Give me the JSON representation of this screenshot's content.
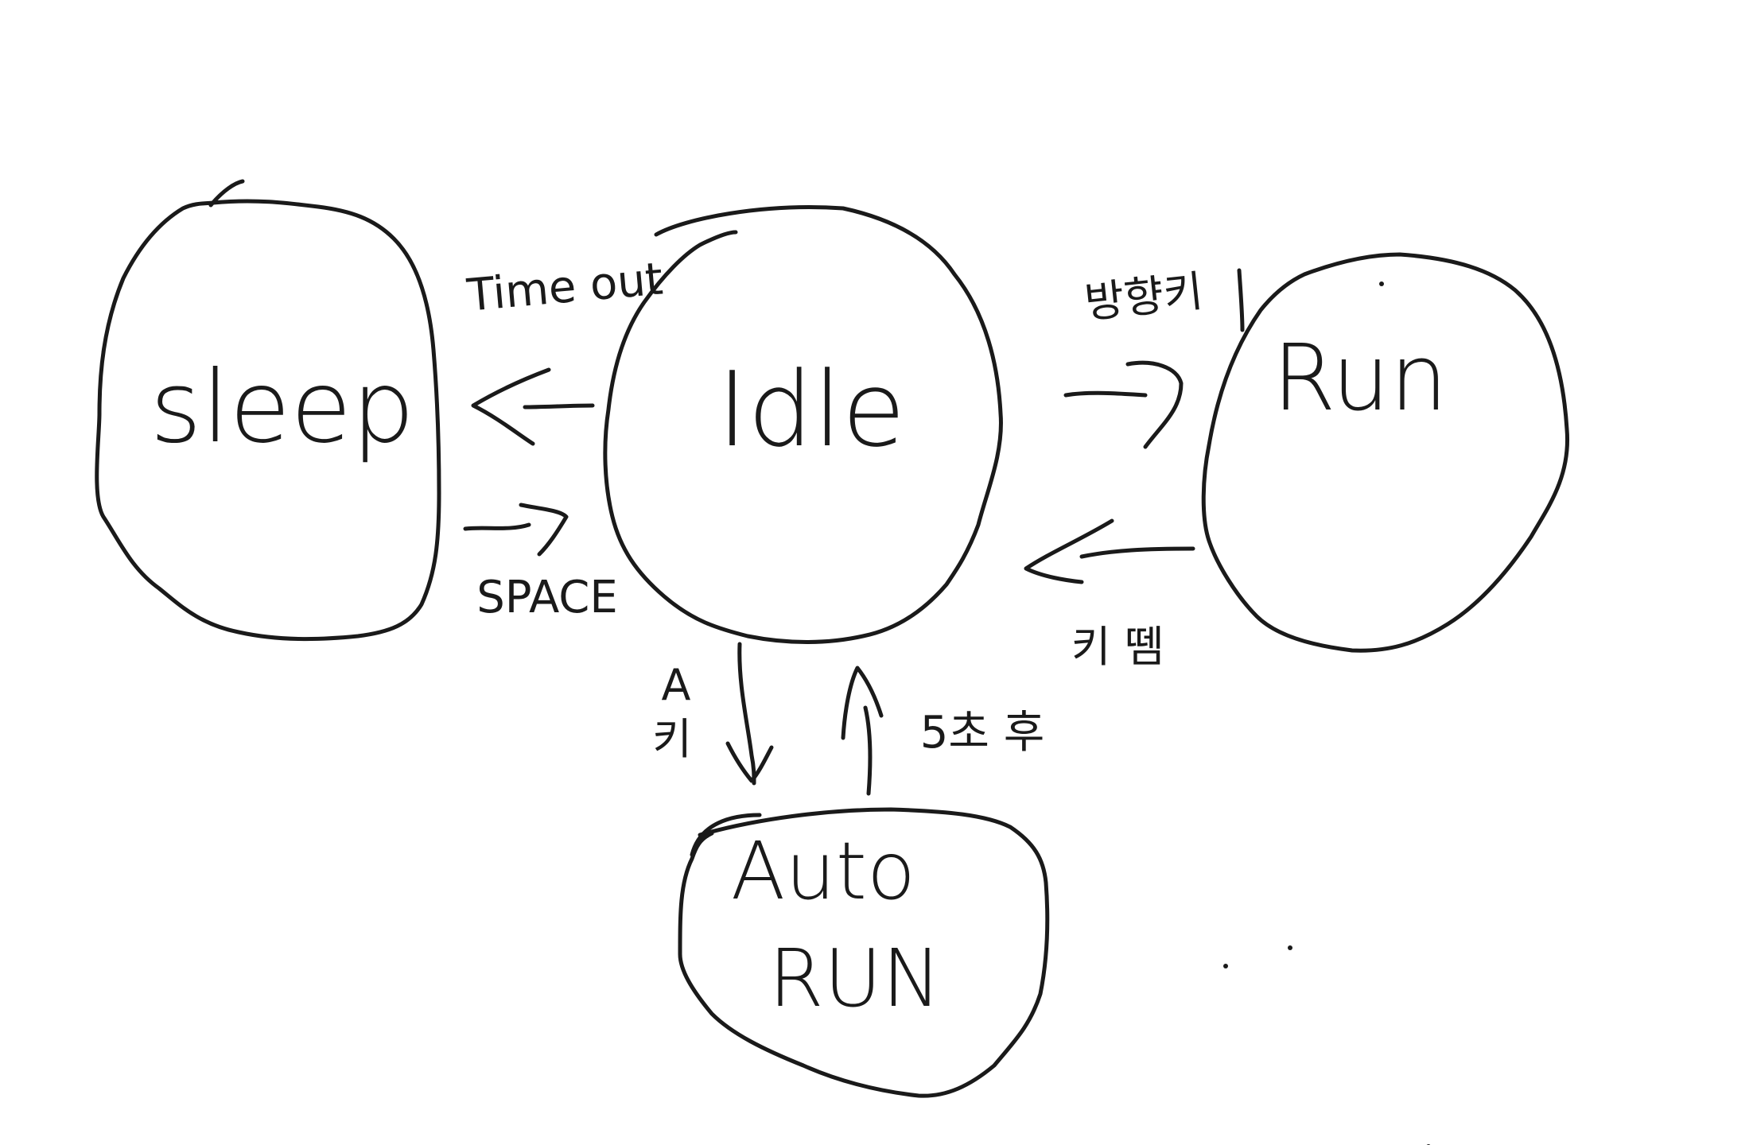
{
  "diagram": {
    "states": {
      "sleep": "sleep",
      "idle": "Idle",
      "run": "Run",
      "auto_run_line1": "Auto",
      "auto_run_line2": "RUN"
    },
    "transitions": {
      "idle_to_sleep": "Time out",
      "sleep_to_idle": "SPACE",
      "idle_to_run": "방향키",
      "run_to_idle": "키 뗌",
      "idle_to_auto_run_line1": "A",
      "idle_to_auto_run_line2": "키",
      "auto_run_to_idle": "5초 후"
    }
  }
}
